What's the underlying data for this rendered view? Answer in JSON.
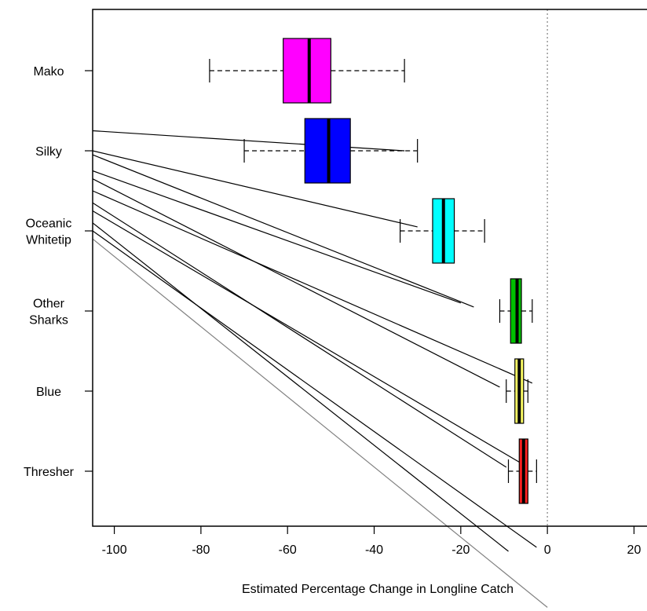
{
  "chart_data": {
    "type": "box",
    "xlabel": "Estimated Percentage Change in Longline Catch",
    "ylabel": "",
    "xlim": [
      -105,
      23
    ],
    "x_ticks": [
      -100,
      -80,
      -60,
      -40,
      -20,
      0,
      20
    ],
    "reference_line_x": 0,
    "grid": false,
    "categories": [
      {
        "label_lines": [
          "Mako"
        ],
        "color": "#ff00ff",
        "whisker_low": -78,
        "q1": -61,
        "median": -55,
        "q3": -50,
        "whisker_high": -33
      },
      {
        "label_lines": [
          "Silky"
        ],
        "color": "#0000ff",
        "whisker_low": -70,
        "q1": -56,
        "median": -50.5,
        "q3": -45.5,
        "whisker_high": -30
      },
      {
        "label_lines": [
          "Oceanic",
          "Whitetip"
        ],
        "color": "#00ffff",
        "whisker_low": -34,
        "q1": -26.5,
        "median": -24,
        "q3": -21.5,
        "whisker_high": -14.5
      },
      {
        "label_lines": [
          "Other",
          "Sharks"
        ],
        "color": "#00c000",
        "whisker_low": -11,
        "q1": -8.5,
        "median": -7,
        "q3": -6,
        "whisker_high": -3.5
      },
      {
        "label_lines": [
          "Blue"
        ],
        "color": "#ffff66",
        "whisker_low": -9.5,
        "q1": -7.5,
        "median": -6.5,
        "q3": -5.5,
        "whisker_high": -4.5
      },
      {
        "label_lines": [
          "Thresher"
        ],
        "color": "#ff2020",
        "whisker_low": -9,
        "q1": -6.5,
        "median": -5.5,
        "q3": -4.5,
        "whisker_high": -2.5
      }
    ],
    "connector_lines": [
      {
        "x1": -105,
        "y1": 0.75,
        "x2": -33,
        "y2": 1.0
      },
      {
        "x1": -105,
        "y1": 1.0,
        "x2": -30,
        "y2": 1.95
      },
      {
        "x1": -105,
        "y1": 1.05,
        "x2": -17,
        "y2": 2.95
      },
      {
        "x1": -105,
        "y1": 1.25,
        "x2": -20,
        "y2": 2.9
      },
      {
        "x1": -105,
        "y1": 1.35,
        "x2": -11,
        "y2": 3.95
      },
      {
        "x1": -105,
        "y1": 1.5,
        "x2": -3.5,
        "y2": 3.9
      },
      {
        "x1": -105,
        "y1": 1.65,
        "x2": -9.5,
        "y2": 4.95
      },
      {
        "x1": -105,
        "y1": 1.75,
        "x2": -4.5,
        "y2": 4.95
      },
      {
        "x1": -105,
        "y1": 1.9,
        "x2": -9,
        "y2": 6.0
      },
      {
        "x1": -105,
        "y1": 2.0,
        "x2": -2.5,
        "y2": 5.95
      },
      {
        "x1": -105,
        "y1": 2.1,
        "x2": 0,
        "y2": 6.7,
        "color": "#808080"
      }
    ]
  }
}
